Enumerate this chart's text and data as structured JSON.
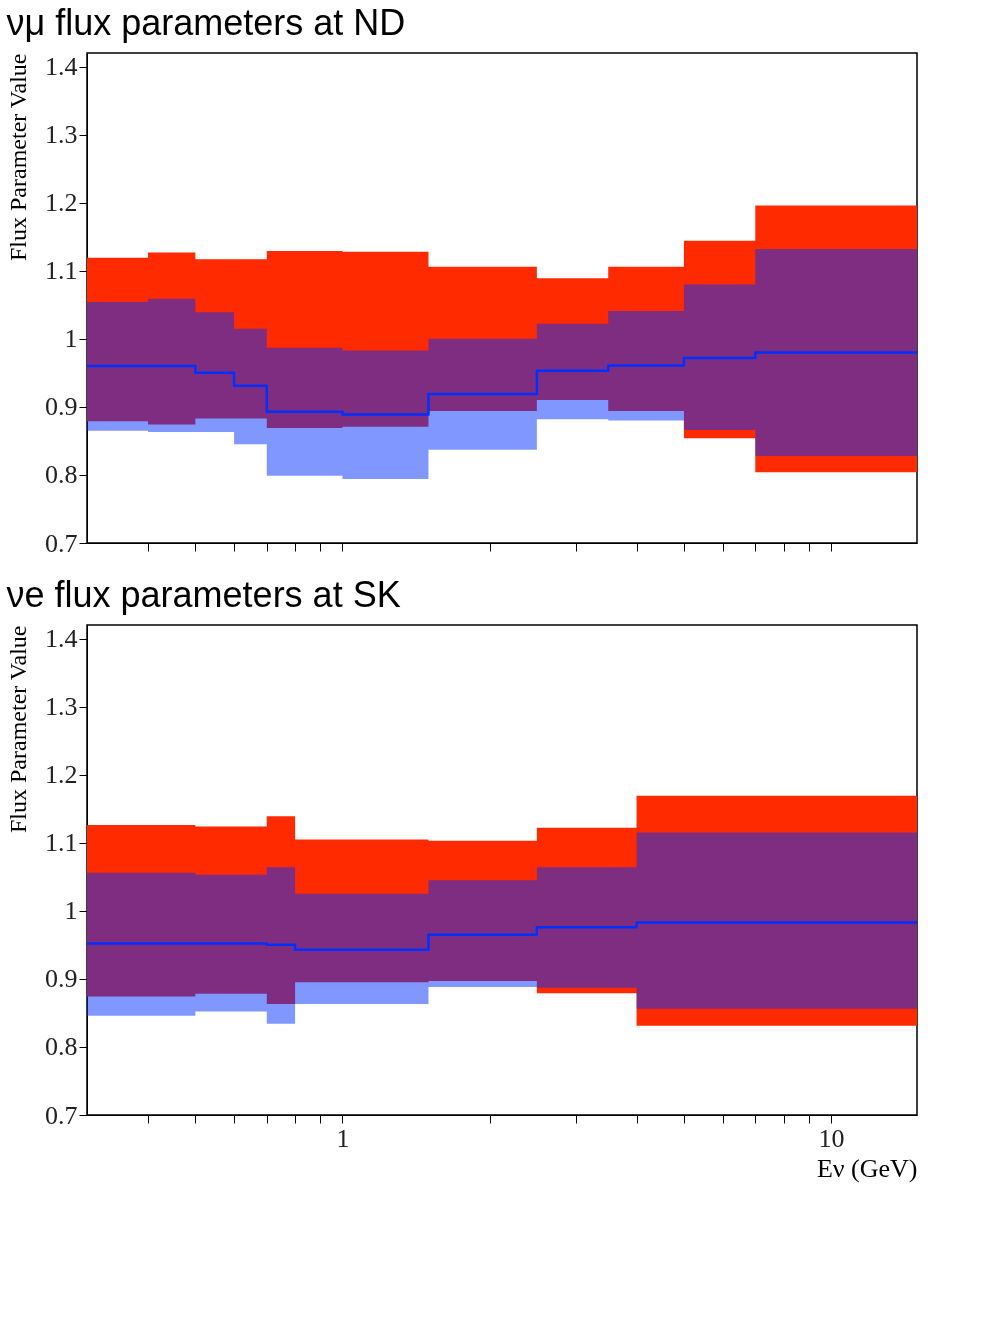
{
  "chart_data": [
    {
      "type": "step",
      "title": "νμ flux parameters at ND",
      "ylabel": "Flux Parameter Value",
      "xlim": [
        0.3,
        15
      ],
      "ylim": [
        0.7,
        1.42
      ],
      "log": "x",
      "grid": false,
      "tick_labels": "y",
      "line_style": "solid",
      "marker": "none",
      "xticks": [
        {
          "value": 0.4,
          "label": null
        },
        {
          "value": 0.5,
          "label": null
        },
        {
          "value": 0.6,
          "label": null
        },
        {
          "value": 0.7,
          "label": null
        },
        {
          "value": 0.8,
          "label": null
        },
        {
          "value": 0.9,
          "label": null
        },
        {
          "value": 1,
          "label": null
        },
        {
          "value": 2,
          "label": null
        },
        {
          "value": 3,
          "label": null
        },
        {
          "value": 4,
          "label": null
        },
        {
          "value": 5,
          "label": null
        },
        {
          "value": 6,
          "label": null
        },
        {
          "value": 7,
          "label": null
        },
        {
          "value": 8,
          "label": null
        },
        {
          "value": 9,
          "label": null
        },
        {
          "value": 10,
          "label": null
        }
      ],
      "yticks": [
        0.7,
        0.8,
        0.9,
        1,
        1.1,
        1.2,
        1.3,
        1.4
      ],
      "series": [
        {
          "color": "#ff2a00",
          "x": [
            0.3,
            0.4,
            0.5,
            0.6,
            0.7,
            1.0,
            1.5,
            2.5,
            3.5,
            5,
            7,
            15
          ],
          "values": [
            null,
            null,
            null,
            null,
            null,
            null,
            null,
            null,
            null,
            null,
            null,
            null
          ],
          "lower": [
            0.879,
            0.874,
            0.883,
            0.883,
            0.869,
            0.871,
            0.894,
            0.91,
            0.894,
            0.854,
            0.804,
            0.804
          ],
          "upper": [
            1.119,
            1.127,
            1.117,
            1.117,
            1.129,
            1.128,
            1.106,
            1.089,
            1.106,
            1.144,
            1.196,
            1.196
          ]
        },
        {
          "color": "#0030ff",
          "x": [
            0.3,
            0.4,
            0.5,
            0.6,
            0.7,
            1.0,
            1.5,
            2.5,
            3.5,
            5,
            7,
            15
          ],
          "values": [
            0.96,
            0.96,
            0.95,
            0.931,
            0.893,
            0.889,
            0.919,
            0.953,
            0.961,
            0.972,
            0.98,
            0.98
          ],
          "lower": [
            0.865,
            0.863,
            0.863,
            0.845,
            0.799,
            0.794,
            0.837,
            0.882,
            0.88,
            0.866,
            0.828,
            0.828
          ],
          "upper": [
            1.054,
            1.059,
            1.039,
            1.015,
            0.987,
            0.983,
            1.0,
            1.022,
            1.041,
            1.08,
            1.132,
            1.132
          ]
        }
      ]
    },
    {
      "type": "step",
      "title": "νe flux parameters at SK",
      "ylabel": "Flux Parameter Value",
      "xlabel": "Eν (GeV)",
      "xlim": [
        0.3,
        15
      ],
      "ylim": [
        0.7,
        1.42
      ],
      "log": "x",
      "grid": false,
      "line_style": "solid",
      "marker": "none",
      "xticks": [
        {
          "value": 0.4,
          "label": null
        },
        {
          "value": 0.5,
          "label": null
        },
        {
          "value": 0.6,
          "label": null
        },
        {
          "value": 0.7,
          "label": null
        },
        {
          "value": 0.8,
          "label": null
        },
        {
          "value": 0.9,
          "label": null
        },
        {
          "value": 1,
          "label": "1"
        },
        {
          "value": 2,
          "label": null
        },
        {
          "value": 3,
          "label": null
        },
        {
          "value": 4,
          "label": null
        },
        {
          "value": 5,
          "label": null
        },
        {
          "value": 6,
          "label": null
        },
        {
          "value": 7,
          "label": null
        },
        {
          "value": 8,
          "label": null
        },
        {
          "value": 9,
          "label": null
        },
        {
          "value": 10,
          "label": "10"
        }
      ],
      "yticks": [
        0.7,
        0.8,
        0.9,
        1,
        1.1,
        1.2,
        1.3,
        1.4
      ],
      "series": [
        {
          "color": "#ff2a00",
          "x": [
            0.3,
            0.5,
            0.7,
            0.8,
            1.5,
            2.5,
            4,
            15
          ],
          "values": [
            null,
            null,
            null,
            null,
            null,
            null,
            null,
            null
          ],
          "lower": [
            0.874,
            0.878,
            0.863,
            0.895,
            0.897,
            0.879,
            0.831,
            0.831
          ],
          "upper": [
            1.126,
            1.124,
            1.139,
            1.105,
            1.103,
            1.122,
            1.169,
            1.169
          ]
        },
        {
          "color": "#0030ff",
          "x": [
            0.3,
            0.5,
            0.7,
            0.8,
            1.5,
            2.5,
            4,
            15
          ],
          "values": [
            0.952,
            0.952,
            0.95,
            0.943,
            0.965,
            0.976,
            0.983,
            0.983
          ],
          "lower": [
            0.846,
            0.852,
            0.834,
            0.863,
            0.888,
            0.887,
            0.856,
            0.856
          ],
          "upper": [
            1.056,
            1.053,
            1.064,
            1.025,
            1.045,
            1.064,
            1.115,
            1.115
          ]
        }
      ]
    }
  ]
}
